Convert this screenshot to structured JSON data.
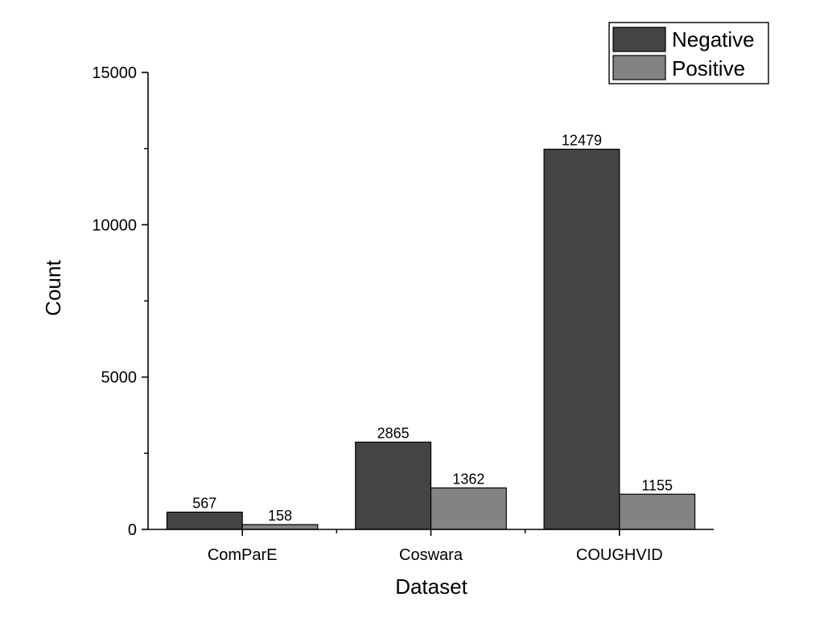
{
  "chart_data": {
    "type": "bar",
    "title": "",
    "xlabel": "Dataset",
    "ylabel": "Count",
    "categories": [
      "ComParE",
      "Coswara",
      "COUGHVID"
    ],
    "series": [
      {
        "name": "Negative",
        "values": [
          567,
          2865,
          12479
        ],
        "labels": [
          "567",
          "2865",
          "12479"
        ],
        "color": "#444444"
      },
      {
        "name": "Positive",
        "values": [
          158,
          1362,
          1155
        ],
        "labels": [
          "158",
          "1362",
          "1155"
        ],
        "color": "#838383"
      }
    ],
    "ylim": [
      0,
      15000
    ],
    "yticks": [
      0,
      5000,
      10000,
      15000
    ],
    "ytick_labels": [
      "0",
      "5000",
      "10000",
      "15000"
    ],
    "yminor_step": 2500,
    "legend": "top-right",
    "grid": false
  }
}
